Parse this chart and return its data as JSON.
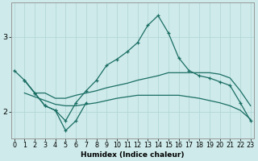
{
  "xlabel": "Humidex (Indice chaleur)",
  "x": [
    0,
    1,
    2,
    3,
    4,
    5,
    6,
    7,
    8,
    9,
    10,
    11,
    12,
    13,
    14,
    15,
    16,
    17,
    18,
    19,
    20,
    21,
    22,
    23
  ],
  "line1_y": [
    2.55,
    2.42,
    2.25,
    2.08,
    2.02,
    1.88,
    2.12,
    2.28,
    2.42,
    2.62,
    2.7,
    2.8,
    2.92,
    3.15,
    3.28,
    3.05,
    2.72,
    2.55,
    2.48,
    2.45,
    2.4,
    2.35,
    2.12,
    1.88
  ],
  "line2_x": [
    1,
    2,
    3,
    4,
    5,
    6,
    7
  ],
  "line2_y": [
    2.42,
    2.25,
    2.08,
    2.02,
    1.75,
    1.88,
    2.12
  ],
  "line3_x": [
    1,
    2,
    3,
    4,
    5,
    6,
    7,
    8,
    9,
    10,
    11,
    12,
    13,
    14,
    15,
    16,
    17,
    18,
    19,
    20,
    21,
    22,
    23
  ],
  "line3_y": [
    2.42,
    2.25,
    2.25,
    2.18,
    2.18,
    2.22,
    2.25,
    2.28,
    2.32,
    2.35,
    2.38,
    2.42,
    2.45,
    2.48,
    2.52,
    2.52,
    2.52,
    2.52,
    2.52,
    2.5,
    2.45,
    2.28,
    2.08
  ],
  "line4_x": [
    1,
    2,
    3,
    4,
    5,
    6,
    7,
    8,
    9,
    10,
    11,
    12,
    13,
    14,
    15,
    16,
    17,
    18,
    19,
    20,
    21,
    22,
    23
  ],
  "line4_y": [
    2.25,
    2.2,
    2.15,
    2.1,
    2.08,
    2.08,
    2.1,
    2.12,
    2.15,
    2.18,
    2.2,
    2.22,
    2.22,
    2.22,
    2.22,
    2.22,
    2.2,
    2.18,
    2.15,
    2.12,
    2.08,
    2.02,
    1.9
  ],
  "ylim": [
    1.65,
    3.45
  ],
  "yticks": [
    2,
    3
  ],
  "xlim": [
    -0.3,
    23.3
  ],
  "bg_color": "#ceeaea",
  "line_color": "#1a6e64",
  "grid_color": "#afd4d4",
  "xlabel_fontsize": 6.5,
  "tick_fontsize": 5.8
}
